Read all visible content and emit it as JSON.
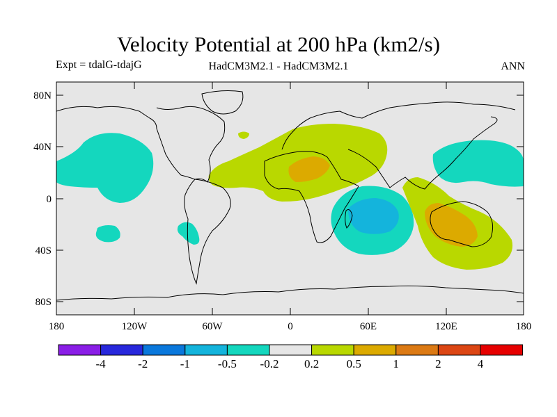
{
  "title": "Velocity Potential at 200 hPa (km2/s)",
  "subtitle_left": "Expt = tdalG-tdajG",
  "subtitle_center": "HadCM3M2.1 - HadCM3M2.1",
  "subtitle_right": "ANN",
  "axes": {
    "lat_ticks": [
      "80N",
      "40N",
      "0",
      "40S",
      "80S"
    ],
    "lon_ticks": [
      "180",
      "120W",
      "60W",
      "0",
      "60E",
      "120E",
      "180"
    ]
  },
  "colorbar": {
    "colors": [
      "#8a1ee6",
      "#2828dc",
      "#0a78dc",
      "#14b4dc",
      "#14d7be",
      "#e6e6e6",
      "#b9d800",
      "#dcaa00",
      "#dc7a14",
      "#dc4614",
      "#e60000"
    ],
    "labels": [
      "-4",
      "-2",
      "-1",
      "-0.5",
      "-0.2",
      "0.2",
      "0.5",
      "1",
      "2",
      "4"
    ]
  },
  "colors": {
    "background": "#e6e6e6",
    "neg_weak": "#14d7be",
    "neg_mid": "#14b4dc",
    "pos_weak": "#b9d800",
    "pos_mid": "#dcaa00"
  }
}
